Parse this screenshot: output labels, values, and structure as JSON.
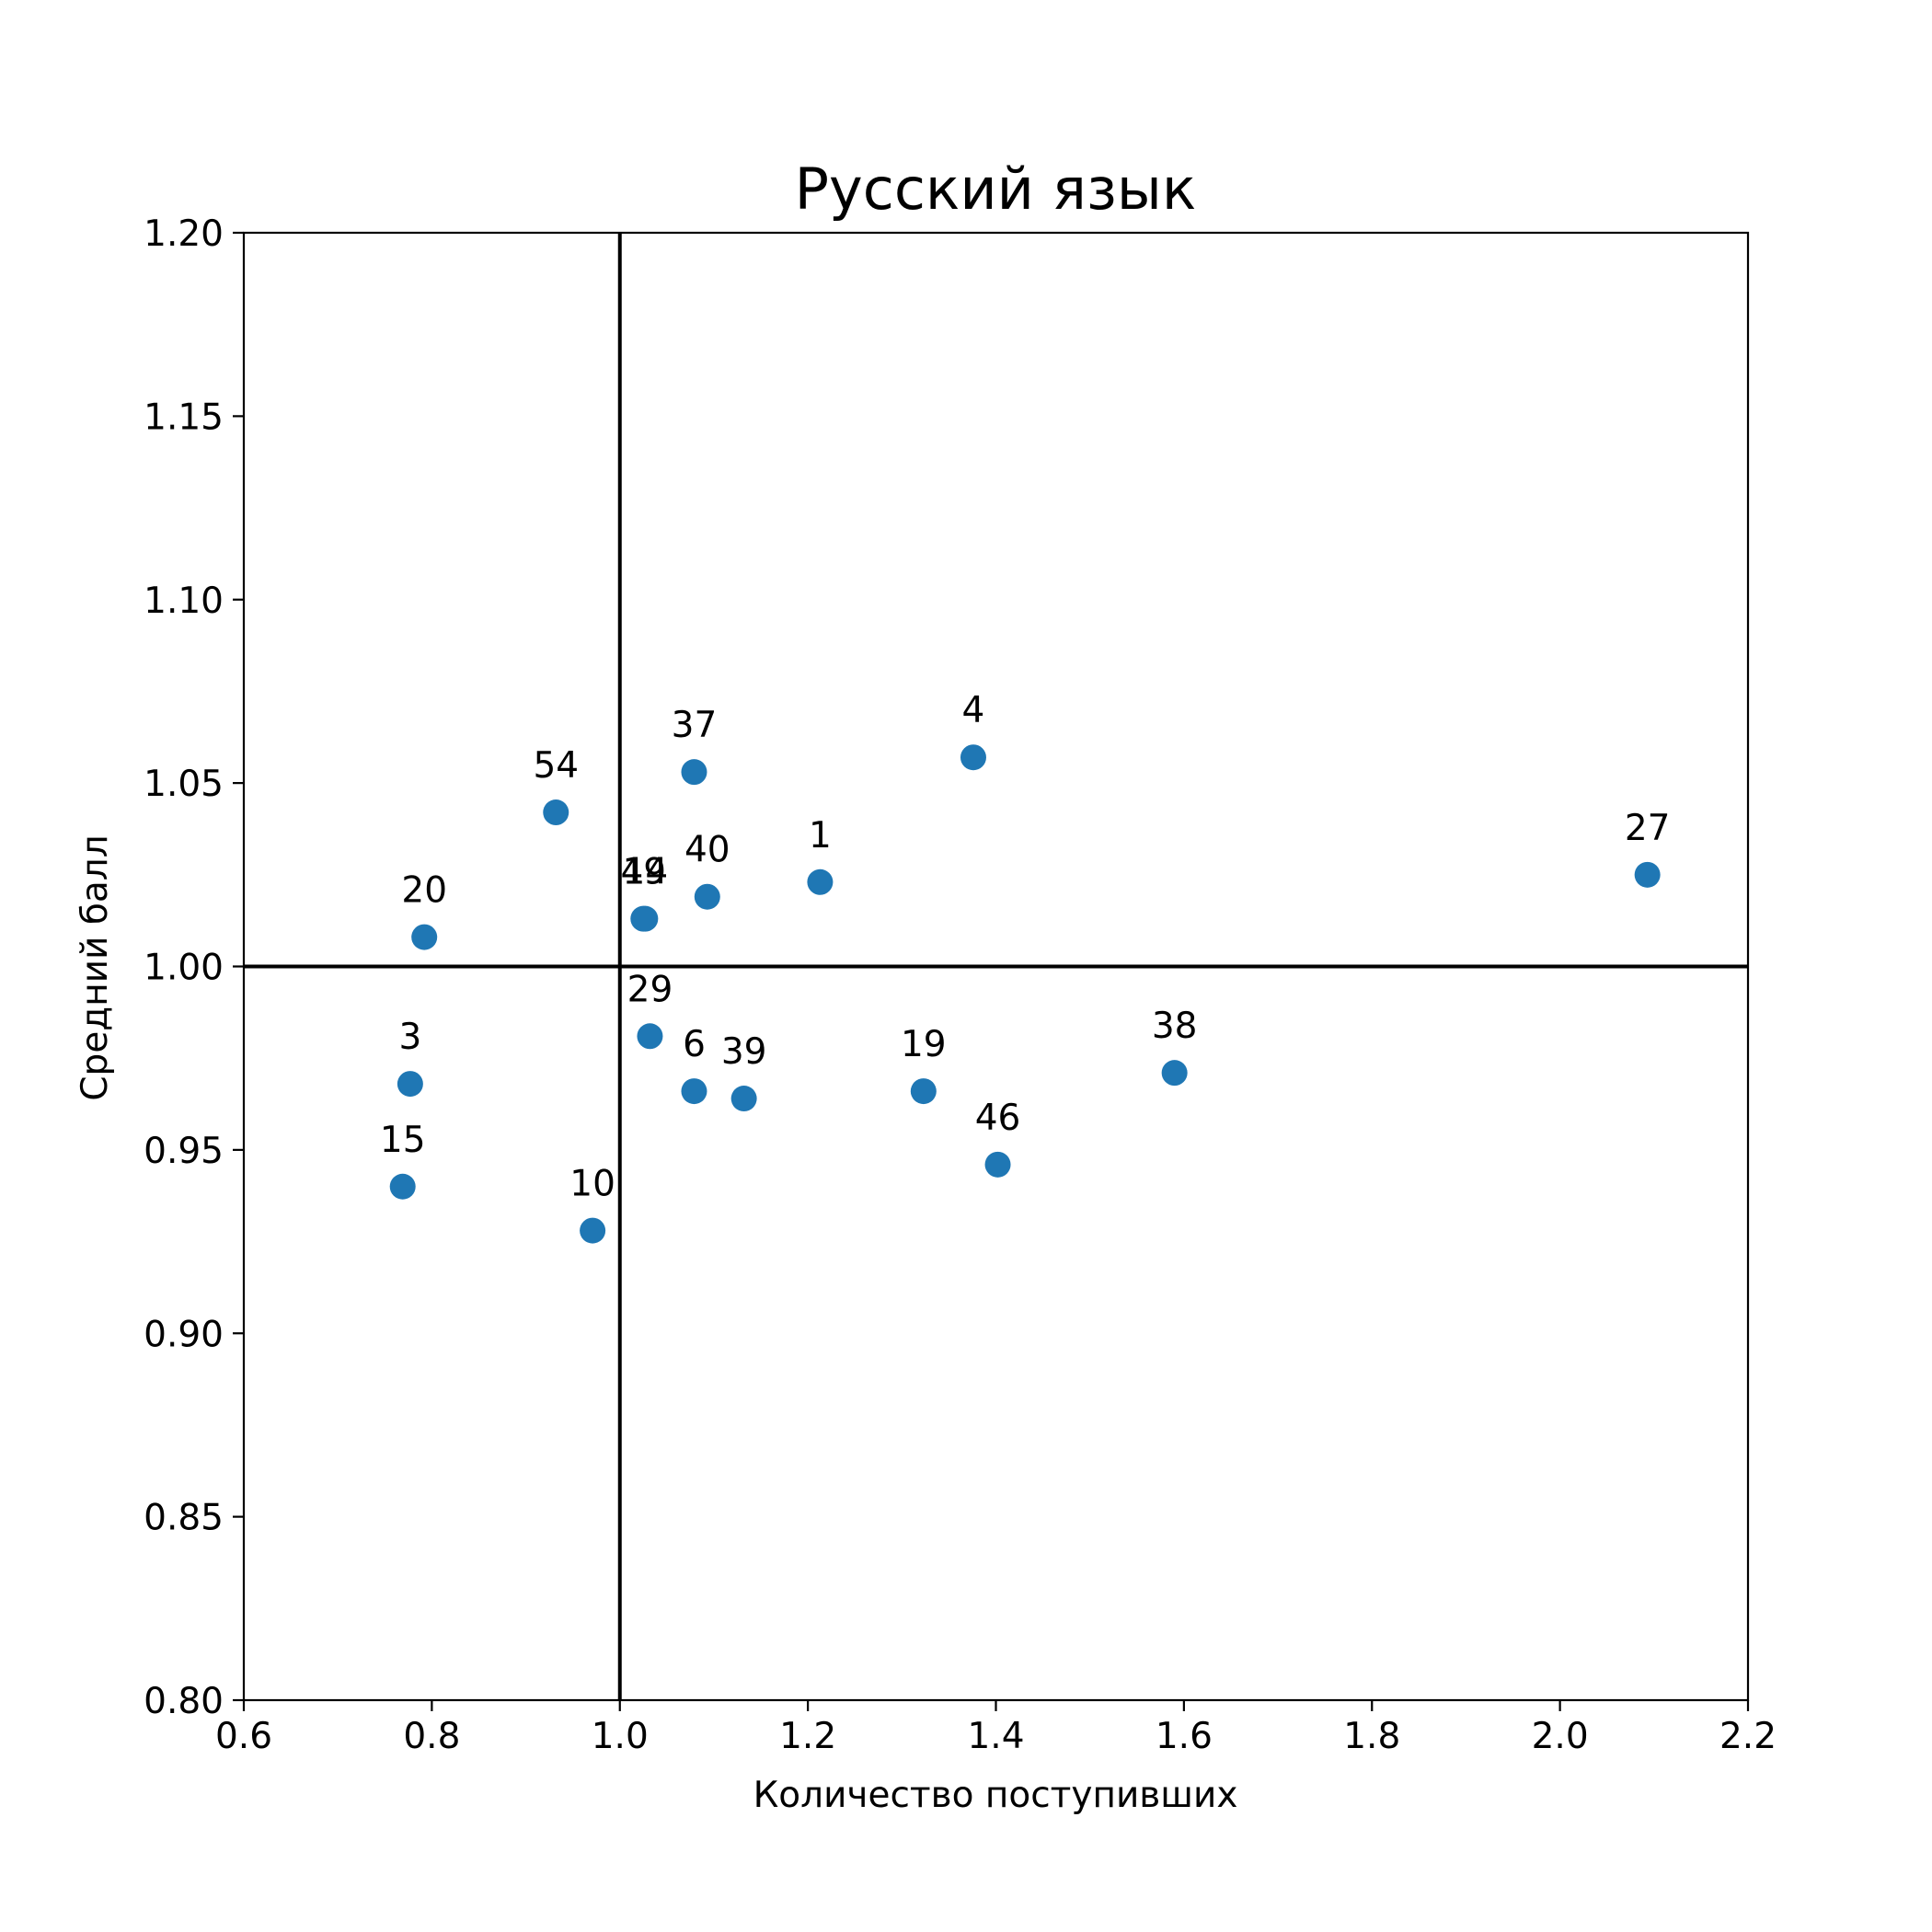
{
  "chart_data": {
    "type": "scatter",
    "title": "Русский язык",
    "xlabel": "Количество поступивших",
    "ylabel": "Средний балл",
    "xlim": [
      0.6,
      2.2
    ],
    "ylim": [
      0.8,
      1.2
    ],
    "xticks": [
      "0.6",
      "0.8",
      "1.0",
      "1.2",
      "1.4",
      "1.6",
      "1.8",
      "2.0",
      "2.2"
    ],
    "yticks": [
      "0.80",
      "0.85",
      "0.90",
      "0.95",
      "1.00",
      "1.05",
      "1.10",
      "1.15",
      "1.20"
    ],
    "reference_lines": {
      "x": 1.0,
      "y": 1.0
    },
    "grid": false,
    "point_color": "#1f77b4",
    "points": [
      {
        "label": "54",
        "x": 0.932,
        "y": 1.042
      },
      {
        "label": "37",
        "x": 1.079,
        "y": 1.053
      },
      {
        "label": "4",
        "x": 1.376,
        "y": 1.057
      },
      {
        "label": "1",
        "x": 1.213,
        "y": 1.023
      },
      {
        "label": "27",
        "x": 2.093,
        "y": 1.025
      },
      {
        "label": "20",
        "x": 0.792,
        "y": 1.008
      },
      {
        "label": "49",
        "x": 1.025,
        "y": 1.013
      },
      {
        "label": "14",
        "x": 1.027,
        "y": 1.013
      },
      {
        "label": "40",
        "x": 1.093,
        "y": 1.019
      },
      {
        "label": "29",
        "x": 1.032,
        "y": 0.981
      },
      {
        "label": "3",
        "x": 0.777,
        "y": 0.968
      },
      {
        "label": "6",
        "x": 1.079,
        "y": 0.966
      },
      {
        "label": "39",
        "x": 1.132,
        "y": 0.964
      },
      {
        "label": "19",
        "x": 1.323,
        "y": 0.966
      },
      {
        "label": "38",
        "x": 1.59,
        "y": 0.971
      },
      {
        "label": "46",
        "x": 1.402,
        "y": 0.946
      },
      {
        "label": "15",
        "x": 0.769,
        "y": 0.94
      },
      {
        "label": "10",
        "x": 0.971,
        "y": 0.928
      }
    ]
  }
}
